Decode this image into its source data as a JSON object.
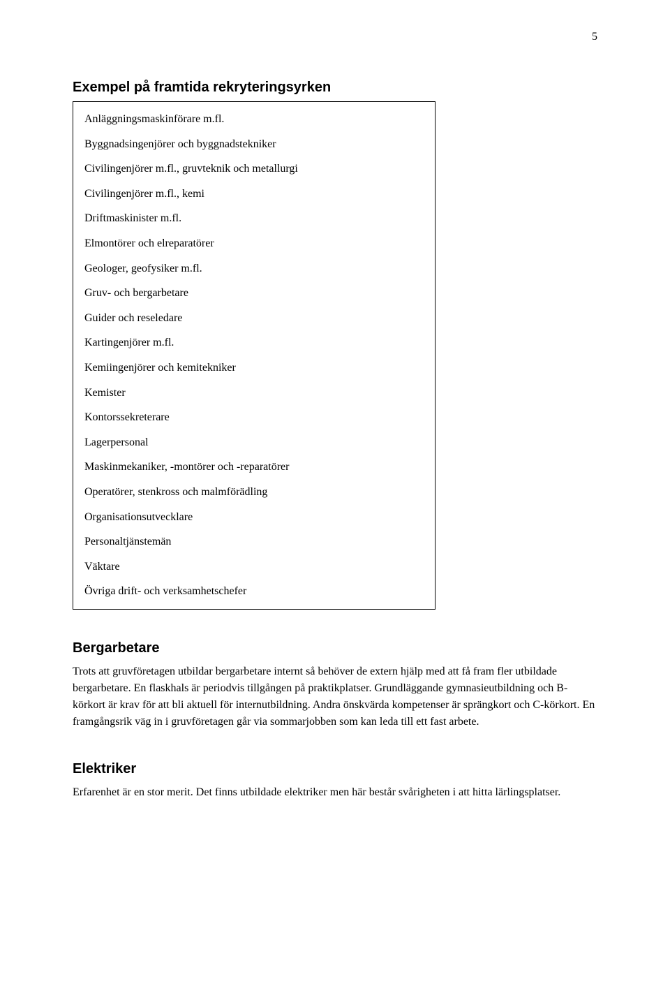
{
  "page_number": "5",
  "heading": "Exempel på framtida rekryteringsyrken",
  "box_items": [
    "Anläggningsmaskinförare m.fl.",
    "Byggnadsingenjörer och byggnadstekniker",
    "Civilingenjörer m.fl., gruvteknik och metallurgi",
    "Civilingenjörer m.fl., kemi",
    "Driftmaskinister m.fl.",
    "Elmontörer och elreparatörer",
    "Geologer, geofysiker m.fl.",
    "Gruv- och bergarbetare",
    "Guider och reseledare",
    "Kartingenjörer m.fl.",
    "Kemiingenjörer och kemitekniker",
    "Kemister",
    "Kontorssekreterare",
    "Lagerpersonal",
    "Maskinmekaniker, -montörer och -reparatörer",
    "Operatörer, stenkross och malmförädling",
    "Organisationsutvecklare",
    "Personaltjänstemän",
    "Väktare",
    "Övriga drift- och verksamhetschefer"
  ],
  "sections": [
    {
      "title": "Bergarbetare",
      "paragraph": "Trots att gruvföretagen utbildar bergarbetare internt så behöver de extern hjälp med att få fram fler utbildade bergarbetare. En flaskhals är periodvis tillgången på praktikplatser. Grundläggande gymnasieutbildning och B-körkort är krav för att bli aktuell för internutbildning. Andra önskvärda kompetenser är sprängkort och C-körkort. En framgångsrik väg in i gruvföretagen går via sommarjobben som kan leda till ett fast arbete."
    },
    {
      "title": "Elektriker",
      "paragraph": "Erfarenhet är en stor merit. Det finns utbildade elektriker men här består svårigheten i att hitta lärlingsplatser."
    }
  ]
}
